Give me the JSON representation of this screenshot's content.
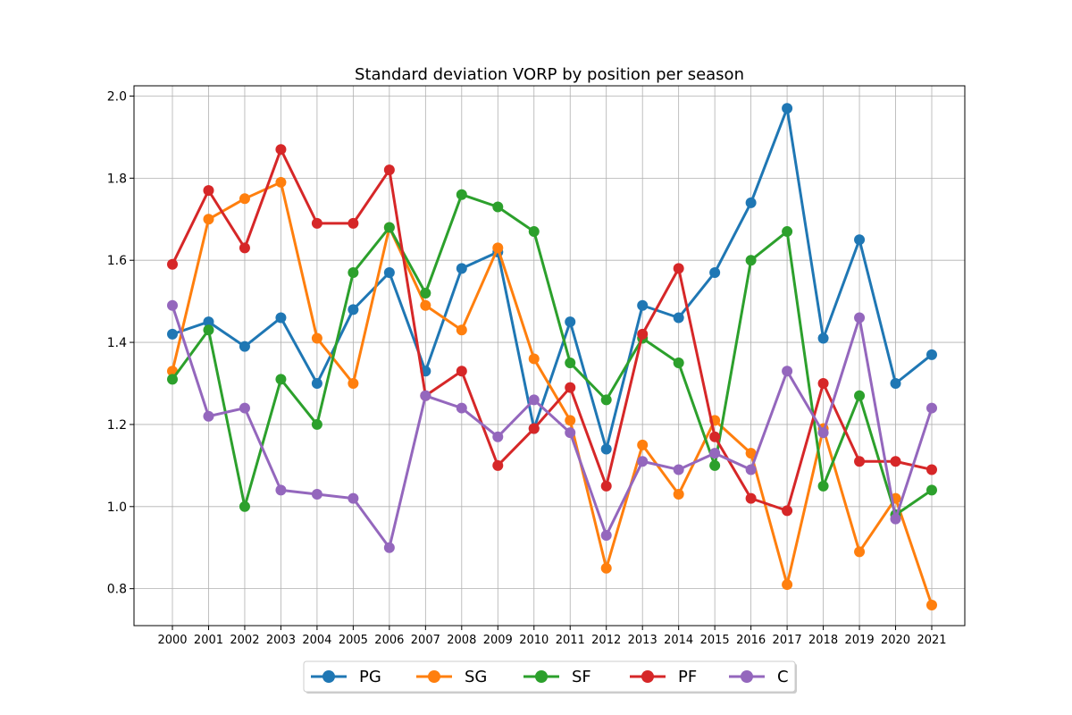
{
  "chart_data": {
    "type": "line",
    "title": "Standard deviation VORP by position per season",
    "xlabel": "",
    "ylabel": "",
    "ylim": [
      0.71,
      2.025
    ],
    "yticks": [
      "0.8",
      "1.0",
      "1.2",
      "1.4",
      "1.6",
      "1.8",
      "2.0"
    ],
    "grid": true,
    "legend_position": "bottom-center",
    "categories": [
      "2000",
      "2001",
      "2002",
      "2003",
      "2004",
      "2005",
      "2006",
      "2007",
      "2008",
      "2009",
      "2010",
      "2011",
      "2012",
      "2013",
      "2014",
      "2015",
      "2016",
      "2017",
      "2018",
      "2019",
      "2020",
      "2021"
    ],
    "series": [
      {
        "name": "PG",
        "color": "#1f77b4",
        "values": [
          1.42,
          1.45,
          1.39,
          1.46,
          1.3,
          1.48,
          1.57,
          1.33,
          1.58,
          1.62,
          1.19,
          1.45,
          1.14,
          1.49,
          1.46,
          1.57,
          1.74,
          1.97,
          1.41,
          1.65,
          1.3,
          1.37
        ]
      },
      {
        "name": "SG",
        "color": "#ff7f0e",
        "values": [
          1.33,
          1.7,
          1.75,
          1.79,
          1.41,
          1.3,
          1.68,
          1.49,
          1.43,
          1.63,
          1.36,
          1.21,
          0.85,
          1.15,
          1.03,
          1.21,
          1.13,
          0.81,
          1.19,
          0.89,
          1.02,
          0.76
        ]
      },
      {
        "name": "SF",
        "color": "#2ca02c",
        "values": [
          1.31,
          1.43,
          1.0,
          1.31,
          1.2,
          1.57,
          1.68,
          1.52,
          1.76,
          1.73,
          1.67,
          1.35,
          1.26,
          1.41,
          1.35,
          1.1,
          1.6,
          1.67,
          1.05,
          1.27,
          0.98,
          1.04
        ]
      },
      {
        "name": "PF",
        "color": "#d62728",
        "values": [
          1.59,
          1.77,
          1.63,
          1.87,
          1.69,
          1.69,
          1.82,
          1.27,
          1.33,
          1.1,
          1.19,
          1.29,
          1.05,
          1.42,
          1.58,
          1.17,
          1.02,
          0.99,
          1.3,
          1.11,
          1.11,
          1.09
        ]
      },
      {
        "name": "C",
        "color": "#9467bd",
        "values": [
          1.49,
          1.22,
          1.24,
          1.04,
          1.03,
          1.02,
          0.9,
          1.27,
          1.24,
          1.17,
          1.26,
          1.18,
          0.93,
          1.11,
          1.09,
          1.13,
          1.09,
          1.33,
          1.18,
          1.46,
          0.97,
          1.24
        ]
      }
    ]
  }
}
